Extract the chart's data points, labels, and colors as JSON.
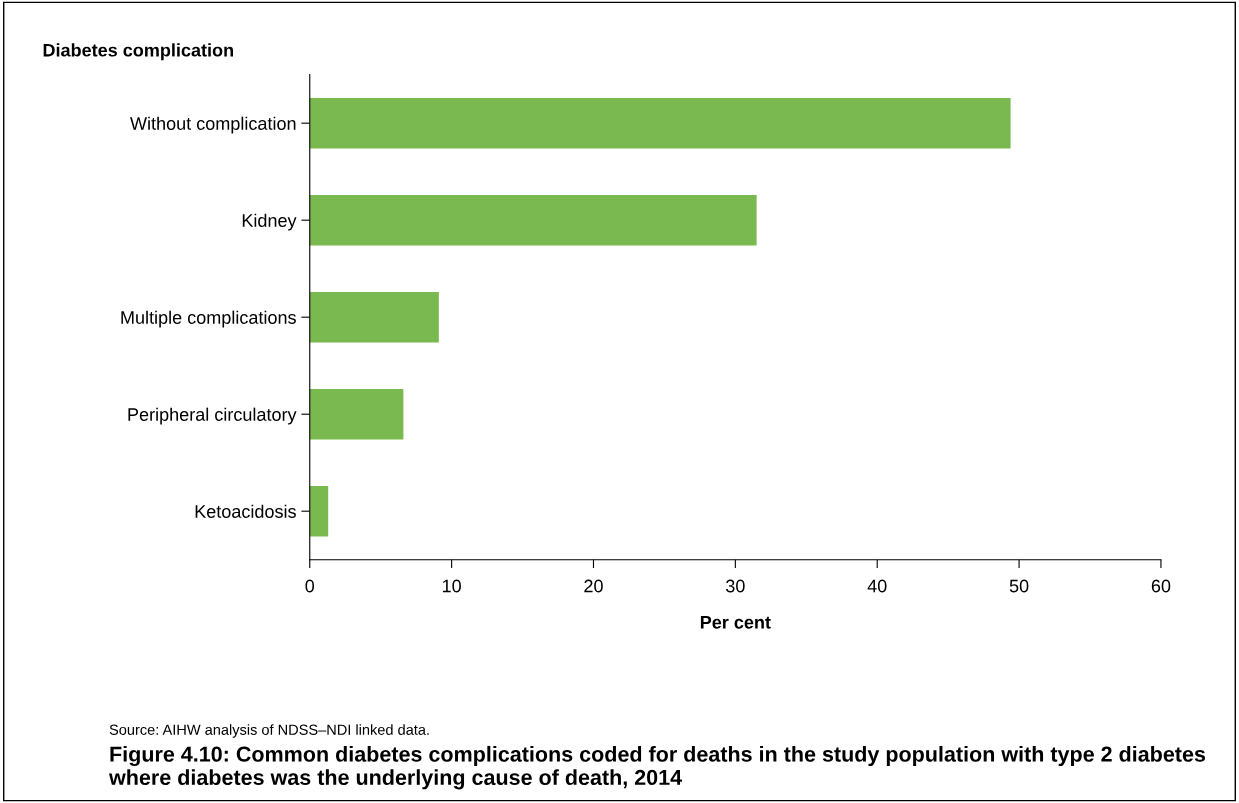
{
  "chart_data": {
    "type": "bar",
    "orientation": "horizontal",
    "title": "Figure 4.10: Common diabetes complications coded for deaths in the study population with type 2 diabetes where diabetes was the underlying cause of death, 2014",
    "ylabel": "Diabetes complication",
    "xlabel": "Per cent",
    "categories": [
      "Without complication",
      "Kidney",
      "Multiple complications",
      "Peripheral circulatory",
      "Ketoacidosis"
    ],
    "values": [
      49.4,
      31.5,
      9.1,
      6.6,
      1.3
    ],
    "color": "#7ab94f",
    "xlim": [
      0,
      60
    ],
    "xticks": [
      0,
      10,
      20,
      30,
      40,
      50,
      60
    ],
    "grid": false,
    "annotations": [
      "Source: AIHW analysis of NDSS–NDI linked data."
    ]
  }
}
